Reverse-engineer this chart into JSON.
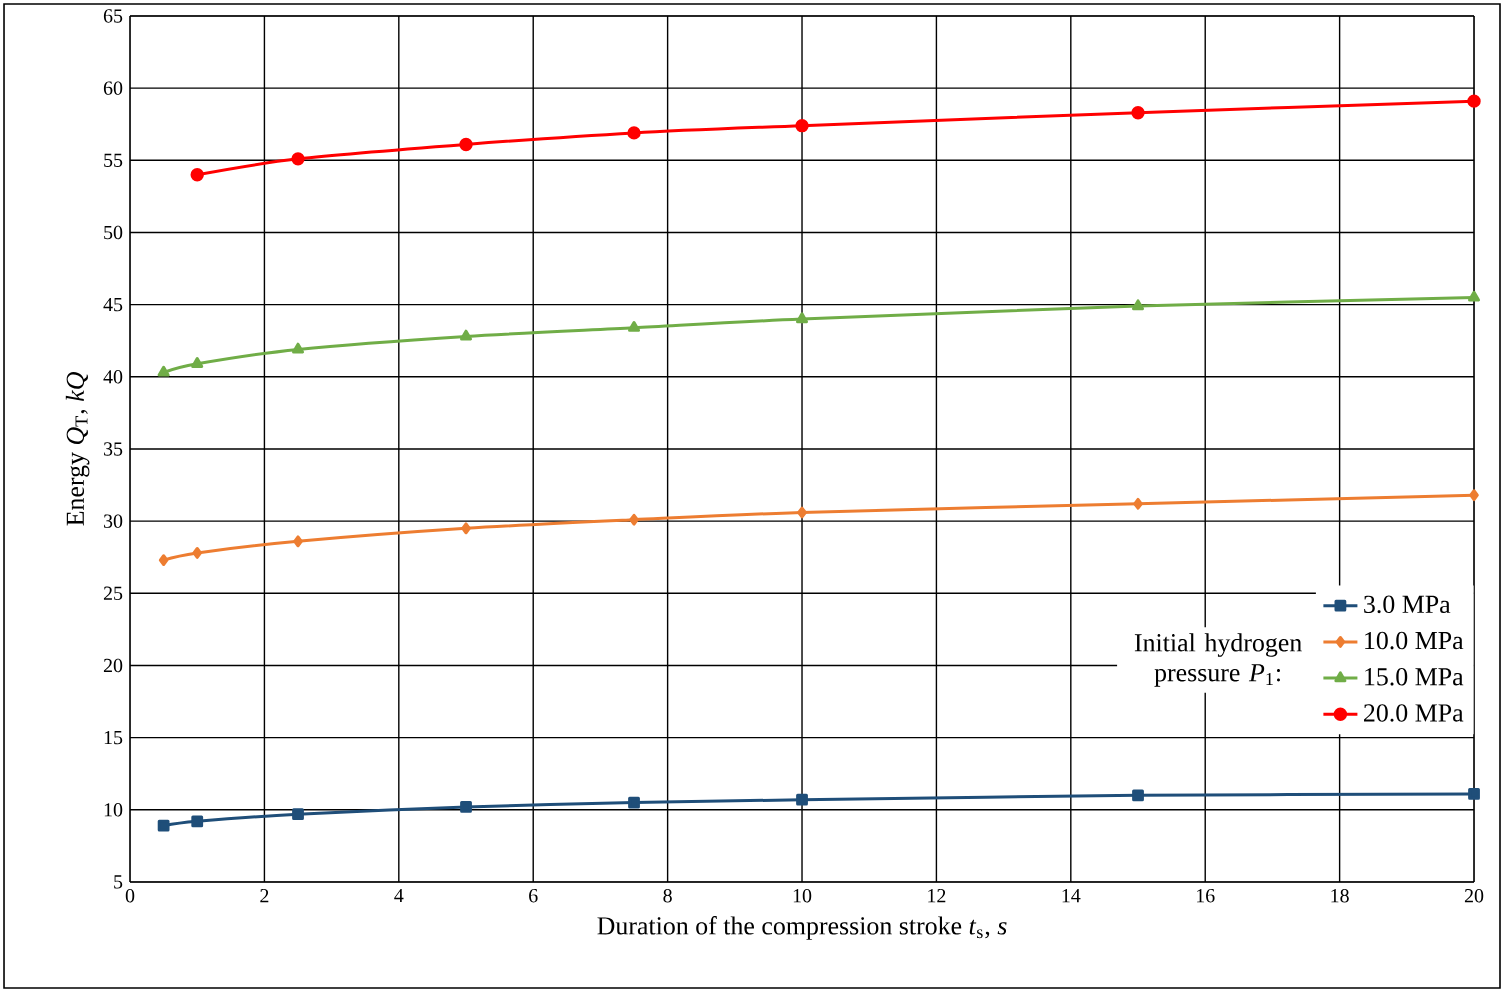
{
  "chart_data": {
    "type": "line",
    "xlabel": "Duration of the compression stroke *t*$_{s}$, *s*",
    "ylabel": "Energy *Q*$_{T}$, *kQ*",
    "legend_title": "Initial hydrogen pressure *P*$_{1}$:",
    "xlim": [
      0,
      20
    ],
    "xticks": [
      0,
      2,
      4,
      6,
      8,
      10,
      12,
      14,
      16,
      18,
      20
    ],
    "ylim": [
      5,
      65
    ],
    "yticks": [
      5,
      10,
      15,
      20,
      25,
      30,
      35,
      40,
      45,
      50,
      55,
      60,
      65
    ],
    "grid": true,
    "legend": "right",
    "line_style": "solid",
    "x": [
      0.5,
      1,
      2.5,
      5,
      7.5,
      10,
      15,
      20
    ],
    "series": [
      {
        "name": "3.0 MPa",
        "color": "#1f4e79",
        "marker": "square",
        "values": [
          8.9,
          9.2,
          9.7,
          10.2,
          10.5,
          10.7,
          11.0,
          11.1
        ]
      },
      {
        "name": "10.0 MPa",
        "color": "#ed7d31",
        "marker": "diamond",
        "values": [
          27.3,
          27.8,
          28.6,
          29.5,
          30.1,
          30.6,
          31.2,
          31.8
        ]
      },
      {
        "name": "15.0 MPa",
        "color": "#70ad47",
        "marker": "triangle",
        "values": [
          40.3,
          40.9,
          41.9,
          42.8,
          43.4,
          44.0,
          44.9,
          45.5
        ]
      },
      {
        "name": "20.0 MPa",
        "color": "#ff0000",
        "marker": "circle",
        "values": [
          null,
          54.0,
          55.1,
          56.1,
          56.9,
          57.4,
          58.3,
          59.1
        ]
      }
    ]
  }
}
